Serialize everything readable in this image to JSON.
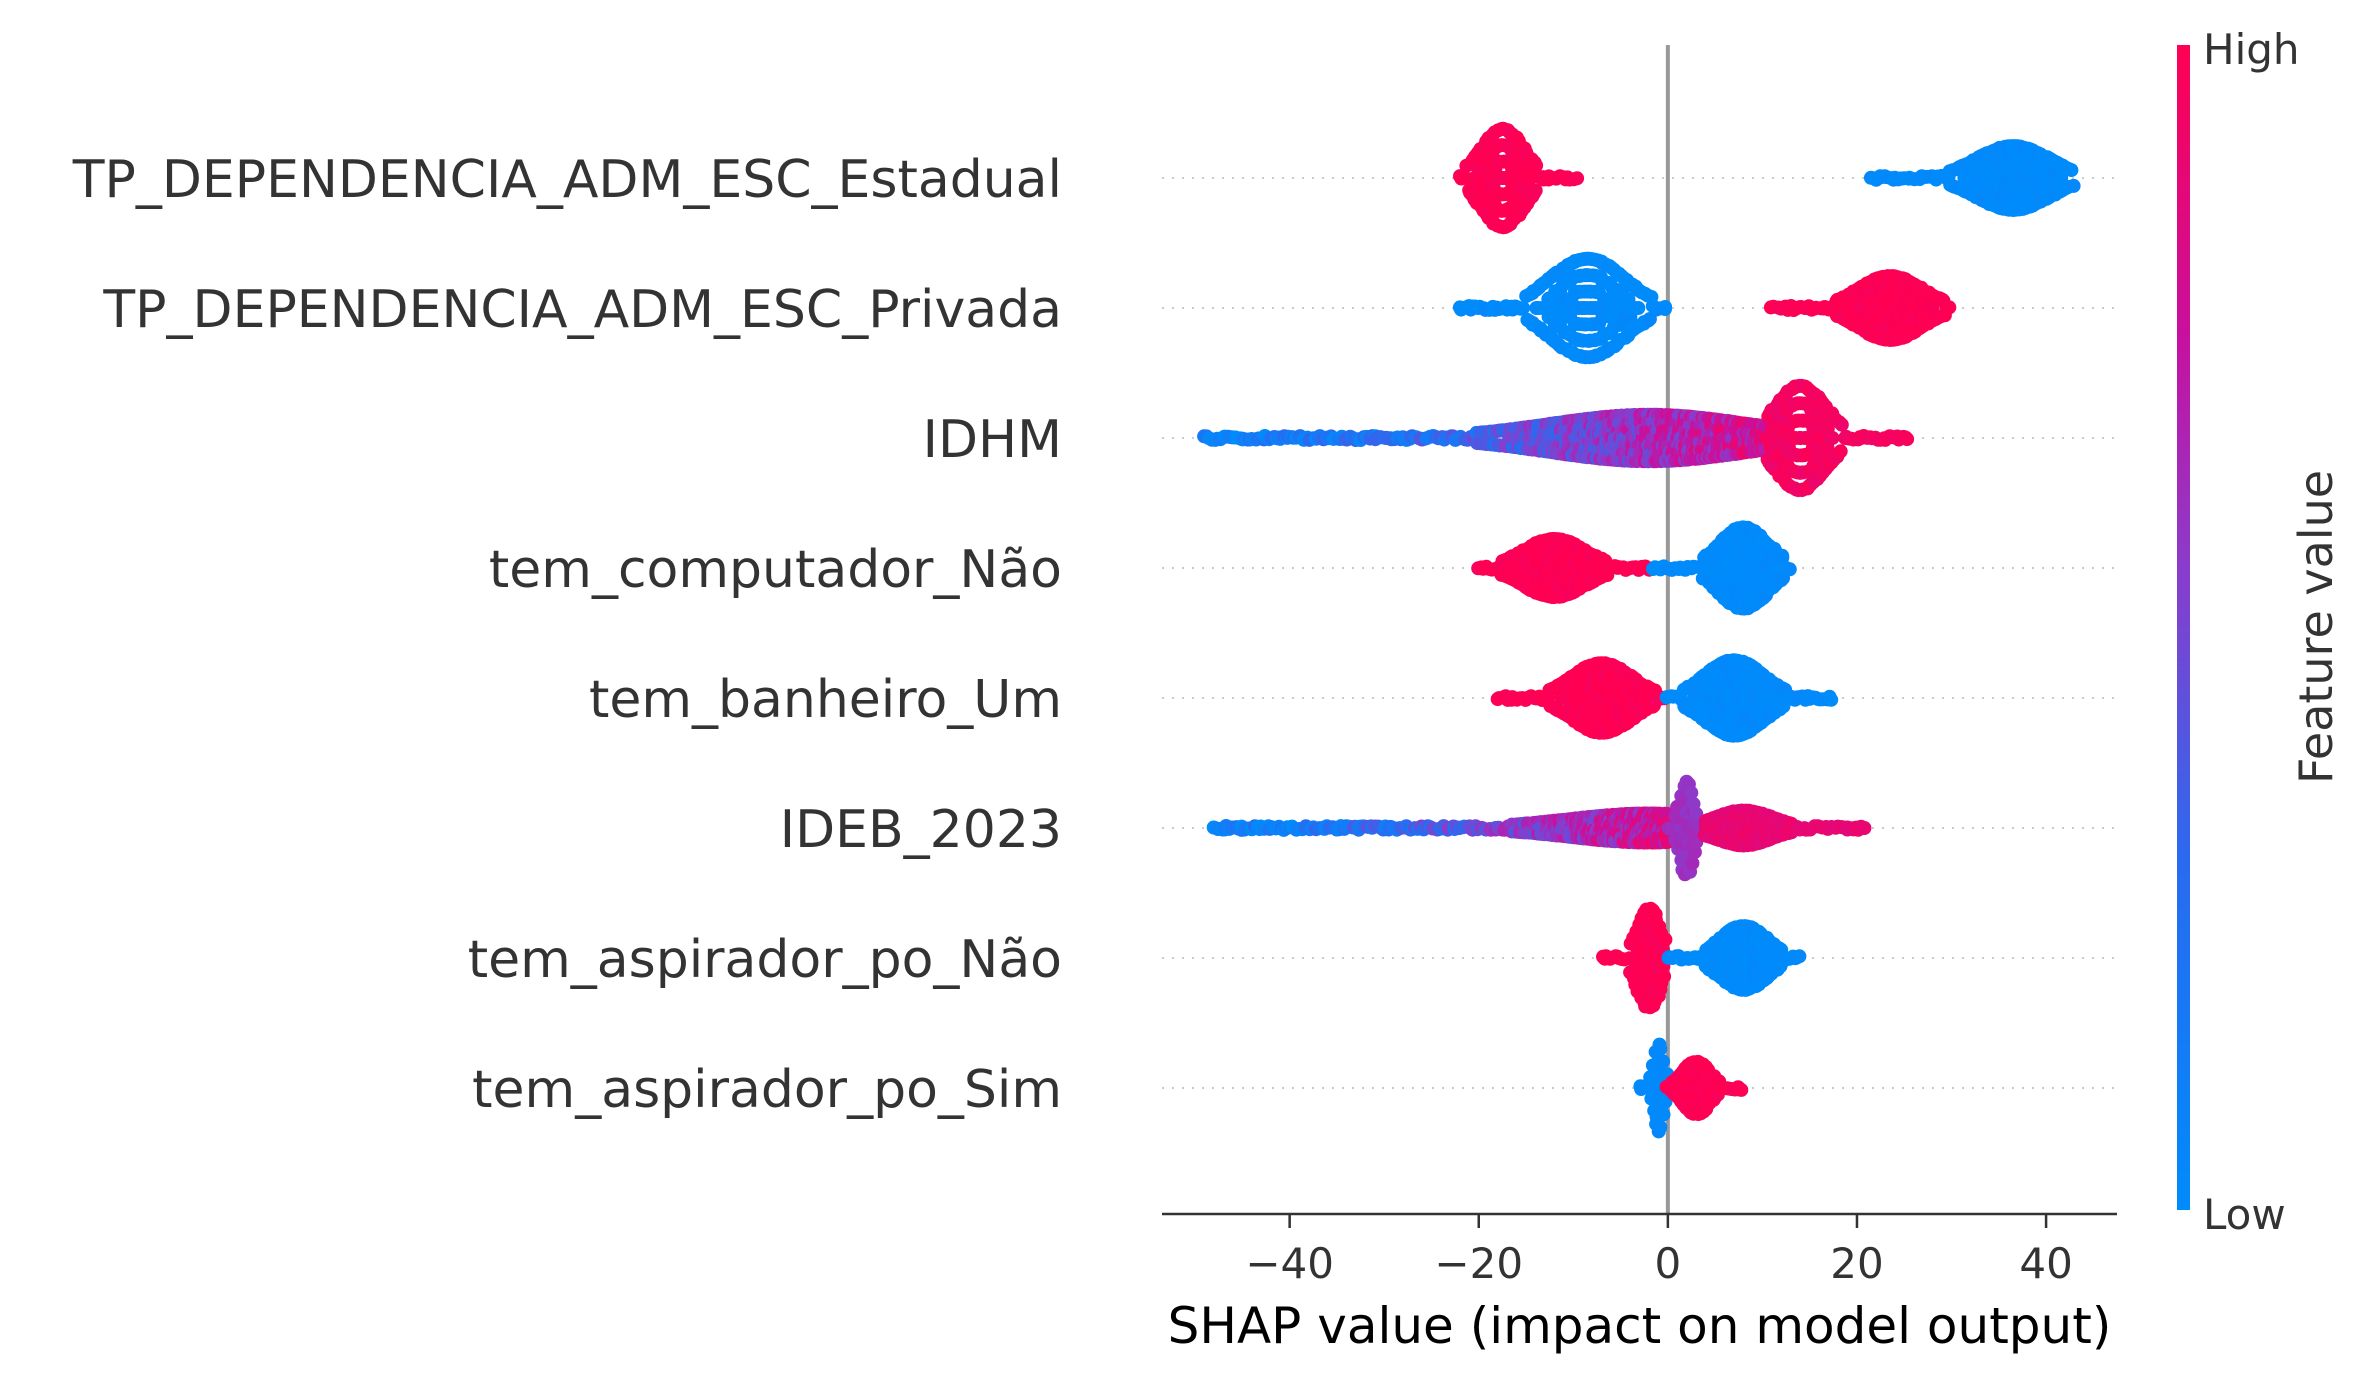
{
  "chart_data": {
    "type": "scatter",
    "subtype": "shap-beeswarm",
    "title": "",
    "xlabel": "SHAP value (impact on model output)",
    "ylabel": "",
    "xlim": [
      -53.5,
      47.5
    ],
    "xticks": [
      -40,
      -20,
      0,
      20,
      40
    ],
    "xtick_labels": [
      "−40",
      "−20",
      "0",
      "20",
      "40"
    ],
    "grid": false,
    "colorbar": {
      "label": "Feature value",
      "high_label": "High",
      "low_label": "Low",
      "high_color": "#ff0052",
      "mid_color": "#b800b8",
      "low_color": "#008bfb"
    },
    "features": [
      {
        "name": "TP_DEPENDENCIA_ADM_ESC_Estadual",
        "groups": [
          {
            "center": -17.5,
            "range": [
              -22,
              -9.5
            ],
            "feature_value": 1,
            "spread": 0.85
          },
          {
            "center": 36.5,
            "range": [
              21.5,
              43
            ],
            "feature_value": 0,
            "spread": 0.55
          }
        ]
      },
      {
        "name": "TP_DEPENDENCIA_ADM_ESC_Privada",
        "groups": [
          {
            "center": -8.5,
            "range": [
              -22,
              0
            ],
            "feature_value": 0,
            "spread": 0.85
          },
          {
            "center": 23.5,
            "range": [
              11,
              30
            ],
            "feature_value": 1,
            "spread": 0.55
          }
        ]
      },
      {
        "name": "IDHM",
        "groups": [
          {
            "center": -2,
            "range": [
              -49,
              10.5
            ],
            "feature_value": "gradient",
            "spread": 0.4
          },
          {
            "center": 14,
            "range": [
              10.5,
              25.5
            ],
            "feature_value": 0.95,
            "spread": 0.9
          }
        ]
      },
      {
        "name": "tem_computador_Não",
        "groups": [
          {
            "center": -12,
            "range": [
              -20,
              -1.5
            ],
            "feature_value": 1,
            "spread": 0.5
          },
          {
            "center": 8,
            "range": [
              -1.5,
              13
            ],
            "feature_value": 0,
            "spread": 0.7
          }
        ]
      },
      {
        "name": "tem_banheiro_Um",
        "groups": [
          {
            "center": -7,
            "range": [
              -18,
              0
            ],
            "feature_value": 1,
            "spread": 0.6
          },
          {
            "center": 7,
            "range": [
              0,
              17.5
            ],
            "feature_value": 0,
            "spread": 0.65
          }
        ]
      },
      {
        "name": "IDEB_2023",
        "groups": [
          {
            "center": -2,
            "range": [
              -48,
              0
            ],
            "feature_value": "gradient",
            "spread": 0.25
          },
          {
            "center": 2,
            "range": [
              0,
              4
            ],
            "feature_value": 0.6,
            "spread": 0.8
          },
          {
            "center": 8,
            "range": [
              4,
              21
            ],
            "feature_value": 0.9,
            "spread": 0.3
          }
        ]
      },
      {
        "name": "tem_aspirador_po_Não",
        "groups": [
          {
            "center": -2,
            "range": [
              -7,
              0
            ],
            "feature_value": 1,
            "spread": 0.85
          },
          {
            "center": 8,
            "range": [
              0,
              14
            ],
            "feature_value": 0,
            "spread": 0.55
          }
        ]
      },
      {
        "name": "tem_aspirador_po_Sim",
        "groups": [
          {
            "center": -1,
            "range": [
              -3,
              0
            ],
            "feature_value": 0,
            "spread": 0.75
          },
          {
            "center": 3,
            "range": [
              0,
              8
            ],
            "feature_value": 1,
            "spread": 0.45
          }
        ]
      }
    ]
  }
}
